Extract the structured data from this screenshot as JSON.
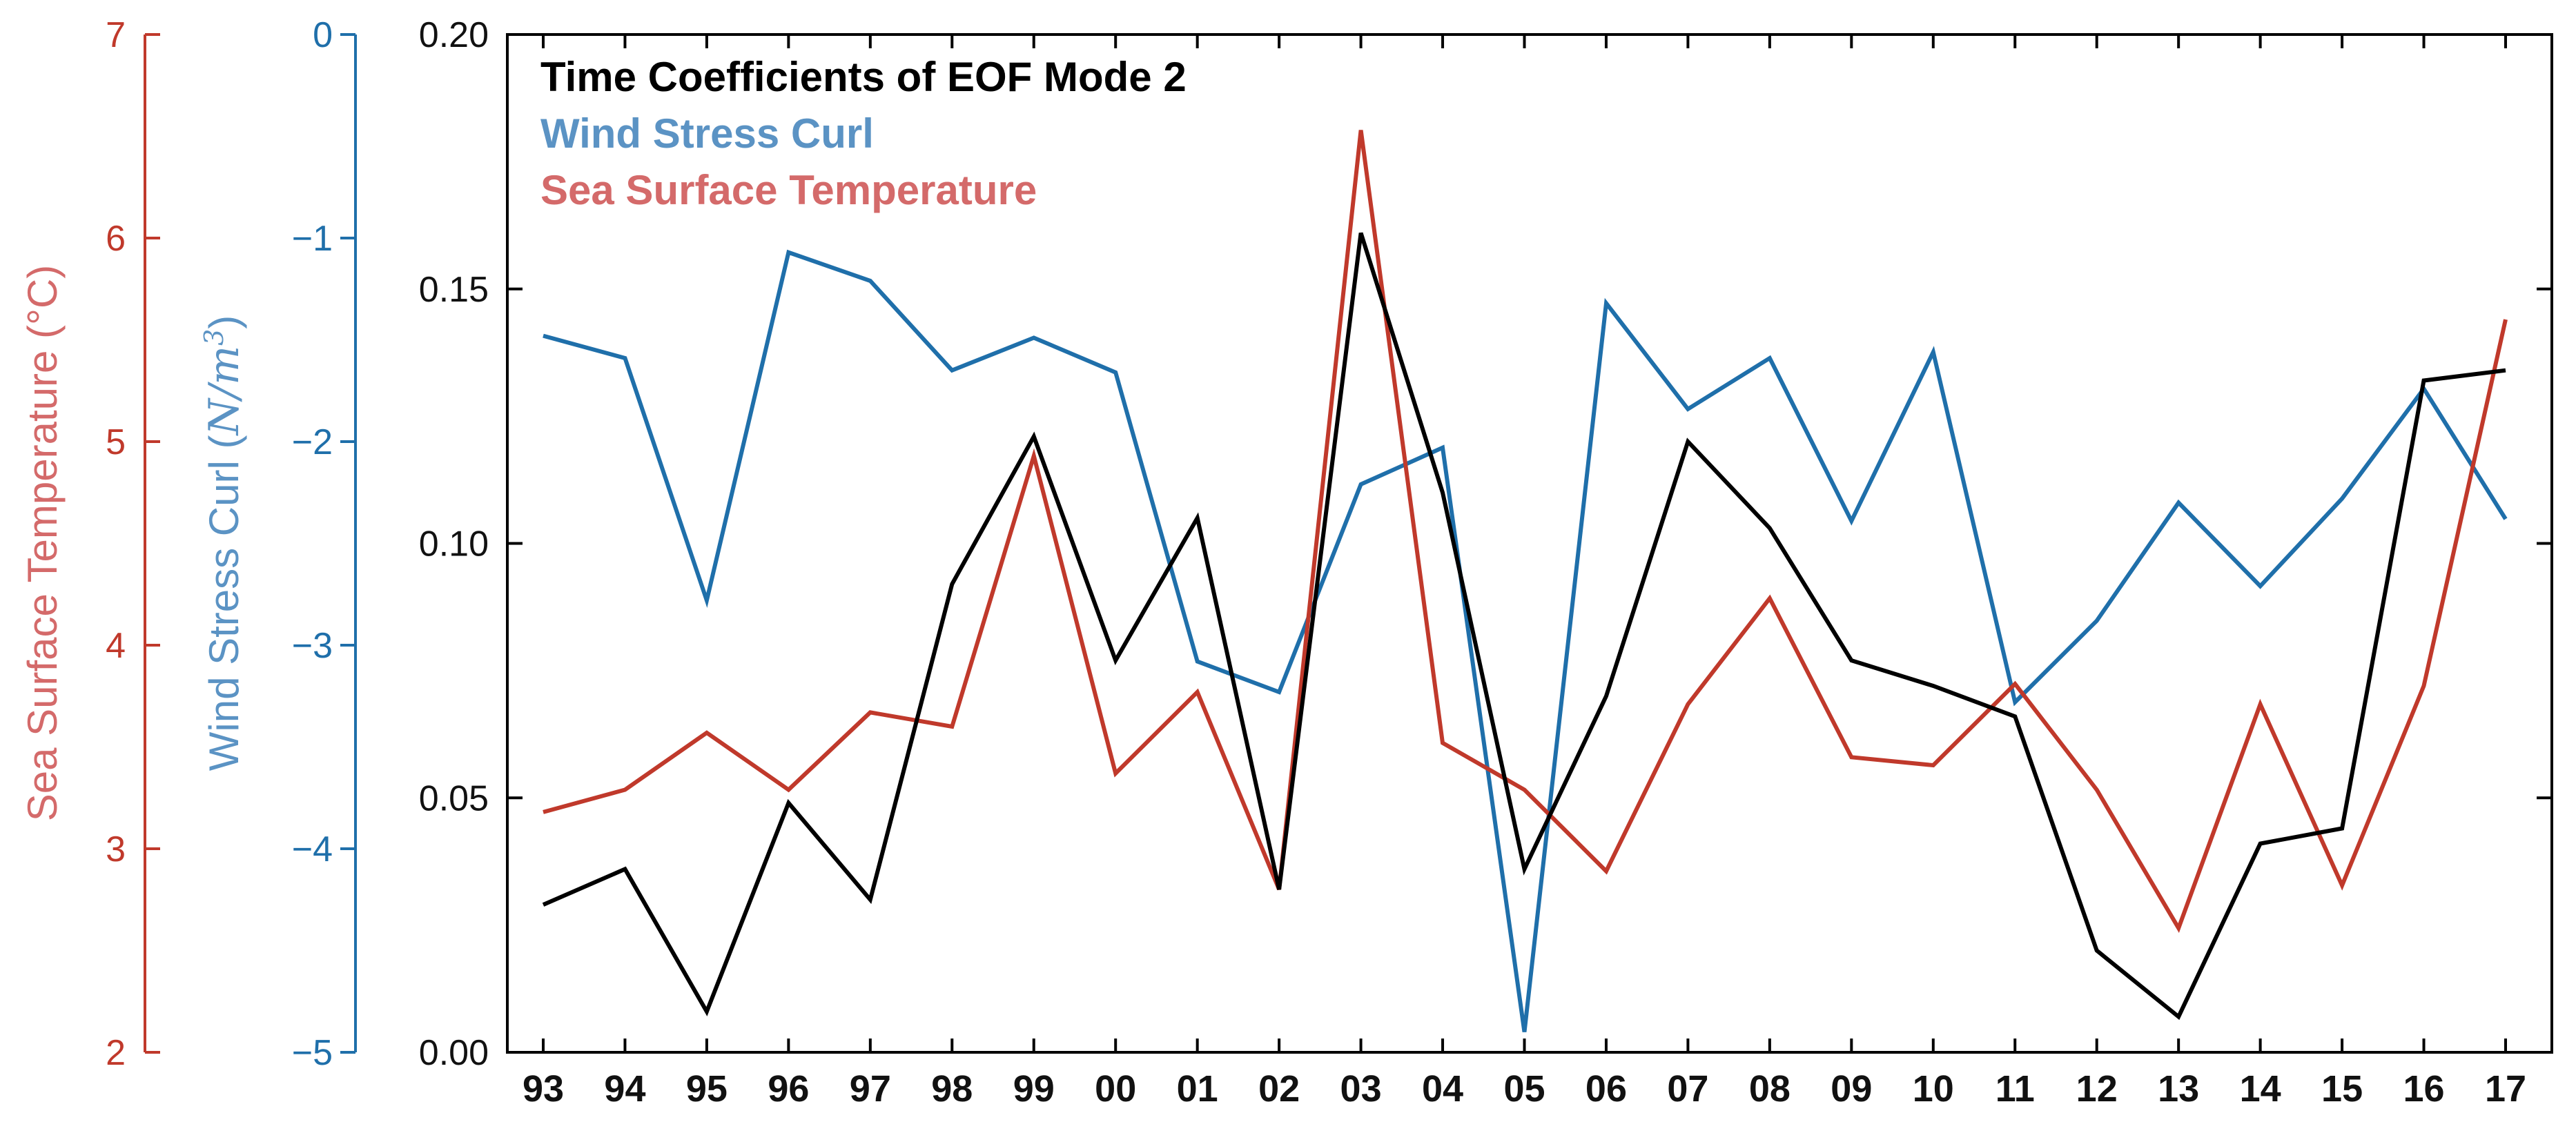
{
  "chart_data": {
    "type": "line",
    "categories": [
      "93",
      "94",
      "95",
      "96",
      "97",
      "98",
      "99",
      "00",
      "01",
      "02",
      "03",
      "04",
      "05",
      "06",
      "07",
      "08",
      "09",
      "10",
      "11",
      "12",
      "13",
      "14",
      "15",
      "16",
      "17"
    ],
    "legend": {
      "title": "Time Coefficients of EOF Mode 2",
      "wind": "Wind Stress Curl",
      "sst": "Sea Surface Temperature",
      "position": "top-left"
    },
    "axes": {
      "primary": {
        "ylim": [
          0,
          0.2
        ],
        "ticks": [
          "0.00",
          "0.05",
          "0.10",
          "0.15",
          "0.20"
        ],
        "label": ""
      },
      "wind": {
        "ylim": [
          -5,
          0
        ],
        "ticks": [
          "−5",
          "−4",
          "−3",
          "−2",
          "−1",
          "0"
        ],
        "label_prefix": "Wind Stress Curl (",
        "label_unit": "N/m",
        "label_exp": "3",
        "label_suffix": ")"
      },
      "sst": {
        "ylim": [
          2,
          7
        ],
        "ticks": [
          "2",
          "3",
          "4",
          "5",
          "6",
          "7"
        ],
        "label": "Sea Surface Temperature (°C)"
      }
    },
    "series": [
      {
        "name": "Time Coefficients of EOF Mode 2",
        "axis": "primary",
        "color": "#000000",
        "values": [
          0.029,
          0.036,
          0.008,
          0.049,
          0.03,
          0.092,
          0.121,
          0.077,
          0.105,
          0.032,
          0.161,
          0.11,
          0.036,
          0.07,
          0.12,
          0.103,
          0.077,
          0.072,
          0.066,
          0.02,
          0.007,
          0.041,
          0.044,
          0.132,
          0.134
        ]
      },
      {
        "name": "Wind Stress Curl",
        "axis": "wind",
        "color": "#1f6faa",
        "values": [
          -1.48,
          -1.59,
          -2.78,
          -1.07,
          -1.21,
          -1.65,
          -1.49,
          -1.66,
          -3.08,
          -3.23,
          -2.21,
          -2.03,
          -4.9,
          -1.32,
          -1.84,
          -1.59,
          -2.39,
          -1.56,
          -3.28,
          -2.88,
          -2.3,
          -2.71,
          -2.28,
          -1.74,
          -2.38
        ]
      },
      {
        "name": "Sea Surface Temperature",
        "axis": "sst",
        "color": "#c0392b",
        "values": [
          3.18,
          3.29,
          3.57,
          3.29,
          3.67,
          3.6,
          4.93,
          3.37,
          3.77,
          2.8,
          6.53,
          3.52,
          3.29,
          2.89,
          3.71,
          4.23,
          3.45,
          3.41,
          3.81,
          3.29,
          2.61,
          3.71,
          2.82,
          3.8,
          5.6
        ]
      }
    ]
  },
  "colors": {
    "primary": "#000000",
    "wind_axis": "#1f6faa",
    "wind_label": "#5b93c4",
    "sst_axis": "#c0392b",
    "sst_label": "#d46a6a"
  }
}
